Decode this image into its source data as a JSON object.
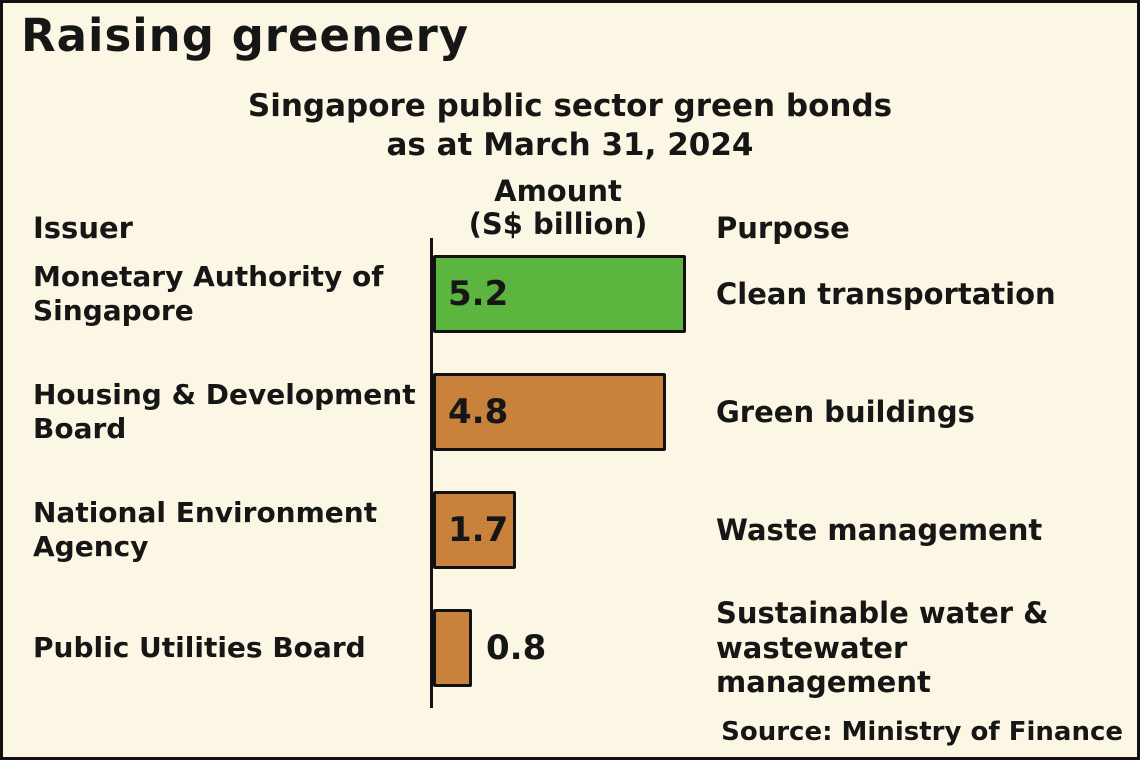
{
  "title": "Raising greenery",
  "subtitle": {
    "line1": "Singapore public sector green bonds",
    "line2": "as at March 31, 2024"
  },
  "headers": {
    "issuer": "Issuer",
    "amount_line1": "Amount",
    "amount_line2": "(S$ billion)",
    "purpose": "Purpose"
  },
  "source": "Source: Ministry of Finance",
  "colors": {
    "background": "#FBF7E4",
    "border": "#111111",
    "green_bar": "#5CB53E",
    "orange_bar": "#C8823C"
  },
  "chart_data": {
    "type": "bar",
    "orientation": "horizontal",
    "title": "Singapore public sector green bonds as at March 31, 2024",
    "xlabel": "Amount (S$ billion)",
    "xlim": [
      0,
      5.5
    ],
    "categories": [
      "Monetary Authority of Singapore",
      "Housing & Development Board",
      "National Environment Agency",
      "Public Utilities Board"
    ],
    "values": [
      5.2,
      4.8,
      1.7,
      0.8
    ],
    "purposes": [
      "Clean transportation",
      "Green buildings",
      "Waste management",
      "Sustainable water & wastewater management"
    ],
    "bar_colors": [
      "#5CB53E",
      "#C8823C",
      "#C8823C",
      "#C8823C"
    ],
    "source": "Ministry of Finance"
  }
}
